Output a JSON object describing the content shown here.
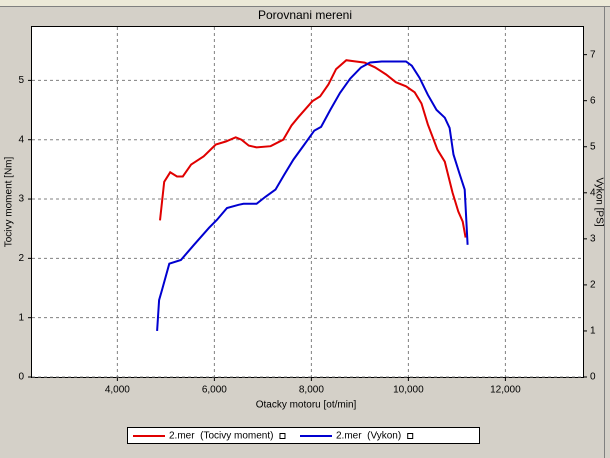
{
  "chart_data": {
    "type": "line",
    "title": "Porovnani mereni",
    "x_label": "Otacky motoru [ot/min]",
    "y_label": "Tocivy moment [Nm]",
    "y2_label": "Vykon [PS]",
    "xlim": [
      2240,
      13600
    ],
    "ylim": [
      0,
      5.9
    ],
    "y2lim": [
      0,
      7.6
    ],
    "xticks": [
      {
        "value": 4000,
        "label": "4,000"
      },
      {
        "value": 6000,
        "label": "6,000"
      },
      {
        "value": 8000,
        "label": "8,000"
      },
      {
        "value": 10000,
        "label": "10,000"
      },
      {
        "value": 12000,
        "label": "12,000"
      }
    ],
    "yticks": [
      0,
      1,
      2,
      3,
      4,
      5
    ],
    "y2ticks": [
      0,
      1,
      2,
      3,
      4,
      5,
      6,
      7
    ],
    "grid": true,
    "legend": "bottom",
    "series": [
      {
        "name": "2.mer  (Tocivy moment)",
        "color": "#e00000",
        "x": [
          4880,
          4965,
          5090,
          5230,
          5350,
          5520,
          5780,
          6030,
          6235,
          6440,
          6560,
          6710,
          6870,
          7160,
          7420,
          7590,
          7730,
          8020,
          8180,
          8350,
          8510,
          8720,
          8900,
          9100,
          9310,
          9540,
          9740,
          9950,
          10130,
          10270,
          10400,
          10600,
          10750,
          10910,
          11030,
          11120,
          11180
        ],
        "values": [
          2.64,
          3.29,
          3.45,
          3.38,
          3.38,
          3.58,
          3.72,
          3.92,
          3.97,
          4.04,
          4.0,
          3.9,
          3.87,
          3.89,
          4.0,
          4.24,
          4.38,
          4.65,
          4.73,
          4.93,
          5.19,
          5.34,
          5.32,
          5.3,
          5.22,
          5.1,
          4.97,
          4.9,
          4.8,
          4.61,
          4.26,
          3.83,
          3.63,
          3.11,
          2.79,
          2.62,
          2.35
        ]
      },
      {
        "name": "2.mer  (Vykon)",
        "color": "#0000d0",
        "axis": "y2",
        "x": [
          4820,
          4860,
          4920,
          5070,
          5310,
          5580,
          5890,
          6050,
          6260,
          6500,
          6600,
          6870,
          7050,
          7260,
          7440,
          7630,
          7850,
          8060,
          8200,
          8390,
          8590,
          8800,
          9020,
          9210,
          9450,
          9740,
          9950,
          10070,
          10230,
          10400,
          10580,
          10750,
          10850,
          10930,
          11050,
          11160,
          11220
        ],
        "values": [
          1.0,
          1.67,
          1.89,
          2.46,
          2.54,
          2.87,
          3.24,
          3.41,
          3.67,
          3.74,
          3.76,
          3.76,
          3.91,
          4.07,
          4.39,
          4.72,
          5.04,
          5.35,
          5.43,
          5.8,
          6.17,
          6.48,
          6.72,
          6.83,
          6.85,
          6.85,
          6.85,
          6.76,
          6.5,
          6.13,
          5.8,
          5.63,
          5.41,
          4.83,
          4.43,
          4.07,
          2.87
        ]
      }
    ]
  }
}
